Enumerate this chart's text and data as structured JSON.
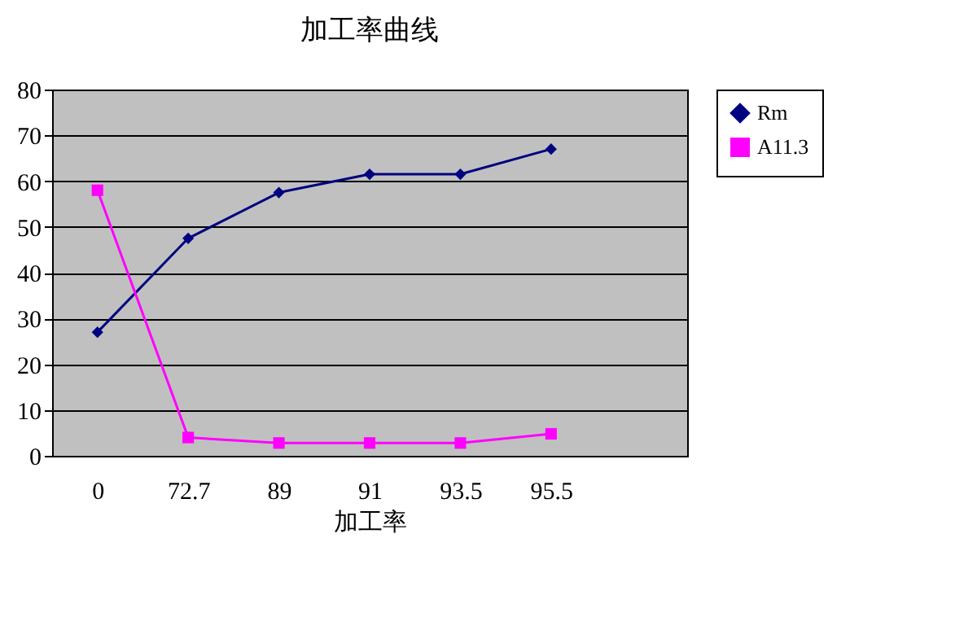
{
  "chart_data": {
    "type": "line",
    "title": "加工率曲线",
    "xlabel": "加工率",
    "categories": [
      "0",
      "72.7",
      "89",
      "91",
      "93.5",
      "95.5"
    ],
    "series": [
      {
        "name": "Rm",
        "color": "#000080",
        "marker": "diamond",
        "values": [
          27,
          47.5,
          57.5,
          61.5,
          61.5,
          67
        ]
      },
      {
        "name": "A11.3",
        "color": "#ff00ff",
        "marker": "square",
        "values": [
          58,
          4,
          2.8,
          2.8,
          2.8,
          4.8
        ]
      }
    ],
    "ylim": [
      0,
      80
    ],
    "yticks": [
      0,
      10,
      20,
      30,
      40,
      50,
      60,
      70,
      80
    ],
    "grid": "y",
    "legend": "right"
  }
}
